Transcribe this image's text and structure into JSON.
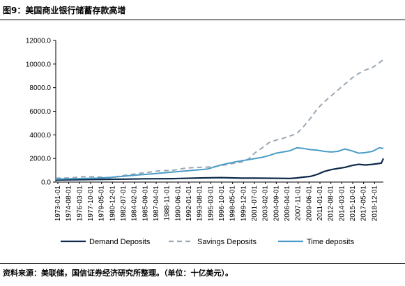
{
  "figure": {
    "title": "图9：美国商业银行储蓄存款高增",
    "source": "资料来源：美联储，国信证券经济研究所整理。（单位：十亿美元）。"
  },
  "chart_data": {
    "type": "line",
    "title": "",
    "xlabel": "",
    "ylabel": "",
    "ylim": [
      0,
      12000
    ],
    "yticks": [
      0,
      2000,
      4000,
      6000,
      8000,
      10000,
      12000
    ],
    "ytick_labels": [
      "0.0",
      "2000.0",
      "4000.0",
      "6000.0",
      "8000.0",
      "10000.0",
      "12000.0"
    ],
    "x_range": [
      1973.0,
      2020.6
    ],
    "xtick_labels": [
      "1973-01-01",
      "1974-08-01",
      "1976-03-01",
      "1977-10-01",
      "1979-05-01",
      "1980-12-01",
      "1982-07-01",
      "1984-02-01",
      "1985-09-01",
      "1987-04-01",
      "1988-11-01",
      "1990-06-01",
      "1992-01-01",
      "1993-08-01",
      "1995-03-01",
      "1996-10-01",
      "1998-05-01",
      "1999-12-01",
      "2001-07-01",
      "2003-02-01",
      "2004-09-01",
      "2006-04-01",
      "2007-11-01",
      "2009-06-01",
      "2011-01-01",
      "2012-08-01",
      "2014-03-01",
      "2015-10-01",
      "2017-05-01",
      "2018-12-01"
    ],
    "grid": false,
    "legend": "bottom",
    "series": [
      {
        "name": "Demand Deposits",
        "color": "#0d2a4a",
        "dash": "solid",
        "points": [
          [
            1973,
            180
          ],
          [
            1976,
            200
          ],
          [
            1980,
            230
          ],
          [
            1983,
            250
          ],
          [
            1986,
            280
          ],
          [
            1990,
            290
          ],
          [
            1994,
            350
          ],
          [
            1997,
            380
          ],
          [
            2000,
            330
          ],
          [
            2002,
            330
          ],
          [
            2005,
            320
          ],
          [
            2007,
            300
          ],
          [
            2008,
            350
          ],
          [
            2009,
            420
          ],
          [
            2010,
            480
          ],
          [
            2011,
            650
          ],
          [
            2012,
            900
          ],
          [
            2013,
            1050
          ],
          [
            2014,
            1150
          ],
          [
            2015,
            1250
          ],
          [
            2016,
            1400
          ],
          [
            2017,
            1500
          ],
          [
            2018,
            1450
          ],
          [
            2019,
            1500
          ],
          [
            2020.3,
            1600
          ],
          [
            2020.6,
            2000
          ]
        ]
      },
      {
        "name": "Savings Deposits",
        "color": "#9aa7b4",
        "dash": "dashed",
        "points": [
          [
            1973,
            330
          ],
          [
            1975,
            350
          ],
          [
            1977,
            450
          ],
          [
            1979,
            450
          ],
          [
            1981,
            350
          ],
          [
            1982,
            480
          ],
          [
            1984,
            650
          ],
          [
            1986,
            800
          ],
          [
            1988,
            950
          ],
          [
            1990,
            1000
          ],
          [
            1992,
            1200
          ],
          [
            1994,
            1250
          ],
          [
            1996,
            1300
          ],
          [
            1998,
            1500
          ],
          [
            2000,
            1700
          ],
          [
            2001,
            1950
          ],
          [
            2002,
            2500
          ],
          [
            2003,
            2900
          ],
          [
            2004,
            3350
          ],
          [
            2005,
            3550
          ],
          [
            2006,
            3700
          ],
          [
            2007,
            3900
          ],
          [
            2008,
            4100
          ],
          [
            2009,
            4700
          ],
          [
            2010,
            5400
          ],
          [
            2011,
            6200
          ],
          [
            2012,
            6800
          ],
          [
            2013,
            7300
          ],
          [
            2014,
            7800
          ],
          [
            2015,
            8300
          ],
          [
            2016,
            8800
          ],
          [
            2017,
            9200
          ],
          [
            2018,
            9500
          ],
          [
            2019,
            9700
          ],
          [
            2020.2,
            10200
          ],
          [
            2020.6,
            10400
          ]
        ]
      },
      {
        "name": "Time deposits",
        "color": "#4a9cc6",
        "dash": "solid",
        "points": [
          [
            1973,
            250
          ],
          [
            1975,
            280
          ],
          [
            1977,
            300
          ],
          [
            1979,
            330
          ],
          [
            1981,
            400
          ],
          [
            1983,
            500
          ],
          [
            1985,
            600
          ],
          [
            1987,
            700
          ],
          [
            1989,
            800
          ],
          [
            1991,
            900
          ],
          [
            1993,
            1000
          ],
          [
            1995,
            1100
          ],
          [
            1997,
            1450
          ],
          [
            1999,
            1700
          ],
          [
            2001,
            1900
          ],
          [
            2003,
            2100
          ],
          [
            2004,
            2250
          ],
          [
            2005,
            2450
          ],
          [
            2006,
            2550
          ],
          [
            2007,
            2650
          ],
          [
            2008,
            2900
          ],
          [
            2009,
            2850
          ],
          [
            2010,
            2750
          ],
          [
            2011,
            2700
          ],
          [
            2012,
            2600
          ],
          [
            2013,
            2550
          ],
          [
            2014,
            2600
          ],
          [
            2015,
            2800
          ],
          [
            2016,
            2650
          ],
          [
            2017,
            2450
          ],
          [
            2018,
            2500
          ],
          [
            2019,
            2600
          ],
          [
            2020,
            2900
          ],
          [
            2020.6,
            2850
          ]
        ]
      }
    ]
  }
}
